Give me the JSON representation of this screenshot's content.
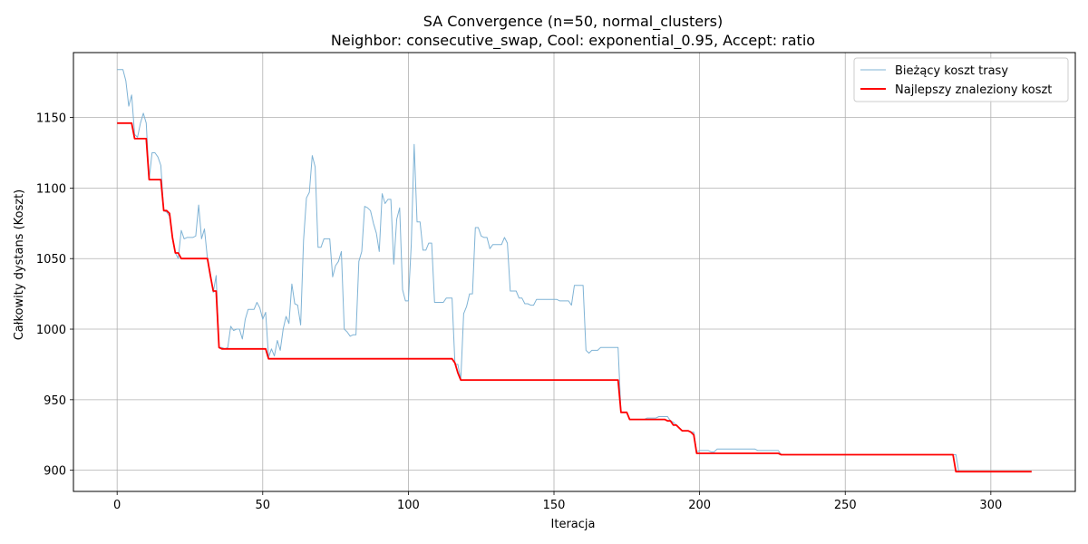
{
  "chart_data": {
    "type": "line",
    "title": "SA Convergence (n=50, normal_clusters)",
    "subtitle": "Neighbor: consecutive_swap, Cool: exponential_0.95, Accept: ratio",
    "xlabel": "Iteracja",
    "ylabel": "Całkowity dystans (Koszt)",
    "xlim": [
      -15,
      329
    ],
    "ylim": [
      885,
      1196
    ],
    "xticks": [
      0,
      50,
      100,
      150,
      200,
      250,
      300
    ],
    "yticks": [
      900,
      950,
      1000,
      1050,
      1100,
      1150
    ],
    "grid": true,
    "legend_position": "top-right",
    "series": [
      {
        "name": "Bieżący koszt trasy",
        "color": "#7fb3d5",
        "points": [
          [
            0,
            1184
          ],
          [
            1,
            1184
          ],
          [
            2,
            1184
          ],
          [
            3,
            1176
          ],
          [
            4,
            1158
          ],
          [
            5,
            1166
          ],
          [
            6,
            1138
          ],
          [
            7,
            1136
          ],
          [
            8,
            1146
          ],
          [
            9,
            1153
          ],
          [
            10,
            1146
          ],
          [
            11,
            1106
          ],
          [
            12,
            1125
          ],
          [
            13,
            1125
          ],
          [
            14,
            1122
          ],
          [
            15,
            1116
          ],
          [
            16,
            1084
          ],
          [
            17,
            1083
          ],
          [
            18,
            1080
          ],
          [
            19,
            1065
          ],
          [
            20,
            1054
          ],
          [
            21,
            1050
          ],
          [
            22,
            1070
          ],
          [
            23,
            1064
          ],
          [
            24,
            1065
          ],
          [
            25,
            1065
          ],
          [
            26,
            1065
          ],
          [
            27,
            1066
          ],
          [
            28,
            1088
          ],
          [
            29,
            1064
          ],
          [
            30,
            1071
          ],
          [
            31,
            1050
          ],
          [
            32,
            1040
          ],
          [
            33,
            1026
          ],
          [
            34,
            1038
          ],
          [
            35,
            987
          ],
          [
            36,
            987
          ],
          [
            37,
            986
          ],
          [
            38,
            987
          ],
          [
            39,
            1002
          ],
          [
            40,
            999
          ],
          [
            41,
            1000
          ],
          [
            42,
            1000
          ],
          [
            43,
            993
          ],
          [
            44,
            1007
          ],
          [
            45,
            1014
          ],
          [
            46,
            1014
          ],
          [
            47,
            1014
          ],
          [
            48,
            1019
          ],
          [
            49,
            1015
          ],
          [
            50,
            1007
          ],
          [
            51,
            1012
          ],
          [
            52,
            980
          ],
          [
            53,
            986
          ],
          [
            54,
            981
          ],
          [
            55,
            992
          ],
          [
            56,
            985
          ],
          [
            57,
            1000
          ],
          [
            58,
            1009
          ],
          [
            59,
            1004
          ],
          [
            60,
            1032
          ],
          [
            61,
            1018
          ],
          [
            62,
            1017
          ],
          [
            63,
            1003
          ],
          [
            64,
            1063
          ],
          [
            65,
            1093
          ],
          [
            66,
            1097
          ],
          [
            67,
            1123
          ],
          [
            68,
            1115
          ],
          [
            69,
            1058
          ],
          [
            70,
            1058
          ],
          [
            71,
            1064
          ],
          [
            72,
            1064
          ],
          [
            73,
            1064
          ],
          [
            74,
            1037
          ],
          [
            75,
            1045
          ],
          [
            76,
            1048
          ],
          [
            77,
            1055
          ],
          [
            78,
            1000
          ],
          [
            79,
            998
          ],
          [
            80,
            995
          ],
          [
            81,
            996
          ],
          [
            82,
            996
          ],
          [
            83,
            1048
          ],
          [
            84,
            1055
          ],
          [
            85,
            1087
          ],
          [
            86,
            1086
          ],
          [
            87,
            1084
          ],
          [
            88,
            1075
          ],
          [
            89,
            1068
          ],
          [
            90,
            1055
          ],
          [
            91,
            1096
          ],
          [
            92,
            1089
          ],
          [
            93,
            1092
          ],
          [
            94,
            1092
          ],
          [
            95,
            1046
          ],
          [
            96,
            1078
          ],
          [
            97,
            1086
          ],
          [
            98,
            1028
          ],
          [
            99,
            1020
          ],
          [
            100,
            1020
          ],
          [
            101,
            1060
          ],
          [
            102,
            1131
          ],
          [
            103,
            1076
          ],
          [
            104,
            1076
          ],
          [
            105,
            1056
          ],
          [
            106,
            1056
          ],
          [
            107,
            1061
          ],
          [
            108,
            1061
          ],
          [
            109,
            1019
          ],
          [
            110,
            1019
          ],
          [
            111,
            1019
          ],
          [
            112,
            1019
          ],
          [
            113,
            1022
          ],
          [
            114,
            1022
          ],
          [
            115,
            1022
          ],
          [
            116,
            975
          ],
          [
            117,
            975
          ],
          [
            118,
            964
          ],
          [
            119,
            1011
          ],
          [
            120,
            1016
          ],
          [
            121,
            1025
          ],
          [
            122,
            1025
          ],
          [
            123,
            1072
          ],
          [
            124,
            1072
          ],
          [
            125,
            1066
          ],
          [
            126,
            1065
          ],
          [
            127,
            1065
          ],
          [
            128,
            1057
          ],
          [
            129,
            1060
          ],
          [
            130,
            1060
          ],
          [
            131,
            1060
          ],
          [
            132,
            1060
          ],
          [
            133,
            1065
          ],
          [
            134,
            1061
          ],
          [
            135,
            1027
          ],
          [
            136,
            1027
          ],
          [
            137,
            1027
          ],
          [
            138,
            1022
          ],
          [
            139,
            1022
          ],
          [
            140,
            1018
          ],
          [
            141,
            1018
          ],
          [
            142,
            1017
          ],
          [
            143,
            1017
          ],
          [
            144,
            1021
          ],
          [
            145,
            1021
          ],
          [
            146,
            1021
          ],
          [
            147,
            1021
          ],
          [
            148,
            1021
          ],
          [
            149,
            1021
          ],
          [
            150,
            1021
          ],
          [
            151,
            1021
          ],
          [
            152,
            1020
          ],
          [
            153,
            1020
          ],
          [
            154,
            1020
          ],
          [
            155,
            1020
          ],
          [
            156,
            1017
          ],
          [
            157,
            1031
          ],
          [
            158,
            1031
          ],
          [
            159,
            1031
          ],
          [
            160,
            1031
          ],
          [
            161,
            985
          ],
          [
            162,
            983
          ],
          [
            163,
            985
          ],
          [
            164,
            985
          ],
          [
            165,
            985
          ],
          [
            166,
            987
          ],
          [
            167,
            987
          ],
          [
            168,
            987
          ],
          [
            169,
            987
          ],
          [
            170,
            987
          ],
          [
            171,
            987
          ],
          [
            172,
            987
          ],
          [
            173,
            941
          ],
          [
            174,
            941
          ],
          [
            175,
            941
          ],
          [
            176,
            936
          ],
          [
            177,
            936
          ],
          [
            178,
            936
          ],
          [
            179,
            936
          ],
          [
            180,
            936
          ],
          [
            181,
            936
          ],
          [
            182,
            937
          ],
          [
            183,
            937
          ],
          [
            184,
            937
          ],
          [
            185,
            937
          ],
          [
            186,
            938
          ],
          [
            187,
            938
          ],
          [
            188,
            938
          ],
          [
            189,
            938
          ],
          [
            190,
            935
          ],
          [
            191,
            934
          ],
          [
            192,
            932
          ],
          [
            193,
            930
          ],
          [
            194,
            928
          ],
          [
            195,
            928
          ],
          [
            196,
            928
          ],
          [
            197,
            927
          ],
          [
            198,
            927
          ],
          [
            199,
            913
          ],
          [
            200,
            914
          ],
          [
            201,
            914
          ],
          [
            202,
            914
          ],
          [
            203,
            914
          ],
          [
            204,
            913
          ],
          [
            205,
            913
          ],
          [
            206,
            915
          ],
          [
            207,
            915
          ],
          [
            208,
            915
          ],
          [
            209,
            915
          ],
          [
            210,
            915
          ],
          [
            211,
            915
          ],
          [
            212,
            915
          ],
          [
            213,
            915
          ],
          [
            214,
            915
          ],
          [
            215,
            915
          ],
          [
            216,
            915
          ],
          [
            217,
            915
          ],
          [
            218,
            915
          ],
          [
            219,
            915
          ],
          [
            220,
            914
          ],
          [
            221,
            914
          ],
          [
            222,
            914
          ],
          [
            223,
            914
          ],
          [
            224,
            914
          ],
          [
            225,
            914
          ],
          [
            226,
            914
          ],
          [
            227,
            914
          ],
          [
            228,
            911
          ],
          [
            288,
            911
          ],
          [
            289,
            899
          ],
          [
            314,
            899
          ]
        ]
      },
      {
        "name": "Najlepszy znaleziony koszt",
        "color": "#ff0000",
        "points": [
          [
            0,
            1146
          ],
          [
            5,
            1146
          ],
          [
            6,
            1135
          ],
          [
            10,
            1135
          ],
          [
            11,
            1106
          ],
          [
            15,
            1106
          ],
          [
            16,
            1084
          ],
          [
            17,
            1084
          ],
          [
            18,
            1082
          ],
          [
            19,
            1065
          ],
          [
            20,
            1054
          ],
          [
            21,
            1054
          ],
          [
            22,
            1050
          ],
          [
            31,
            1050
          ],
          [
            32,
            1038
          ],
          [
            33,
            1027
          ],
          [
            34,
            1027
          ],
          [
            35,
            987
          ],
          [
            36,
            986
          ],
          [
            51,
            986
          ],
          [
            52,
            979
          ],
          [
            115,
            979
          ],
          [
            116,
            976
          ],
          [
            117,
            969
          ],
          [
            118,
            964
          ],
          [
            172,
            964
          ],
          [
            173,
            941
          ],
          [
            175,
            941
          ],
          [
            176,
            936
          ],
          [
            188,
            936
          ],
          [
            189,
            935
          ],
          [
            190,
            935
          ],
          [
            191,
            932
          ],
          [
            192,
            932
          ],
          [
            193,
            930
          ],
          [
            194,
            928
          ],
          [
            195,
            928
          ],
          [
            196,
            928
          ],
          [
            197,
            927
          ],
          [
            198,
            925
          ],
          [
            199,
            912
          ],
          [
            204,
            912
          ],
          [
            205,
            912
          ],
          [
            227,
            912
          ],
          [
            228,
            911
          ],
          [
            287,
            911
          ],
          [
            288,
            899
          ],
          [
            314,
            899
          ]
        ]
      }
    ]
  }
}
